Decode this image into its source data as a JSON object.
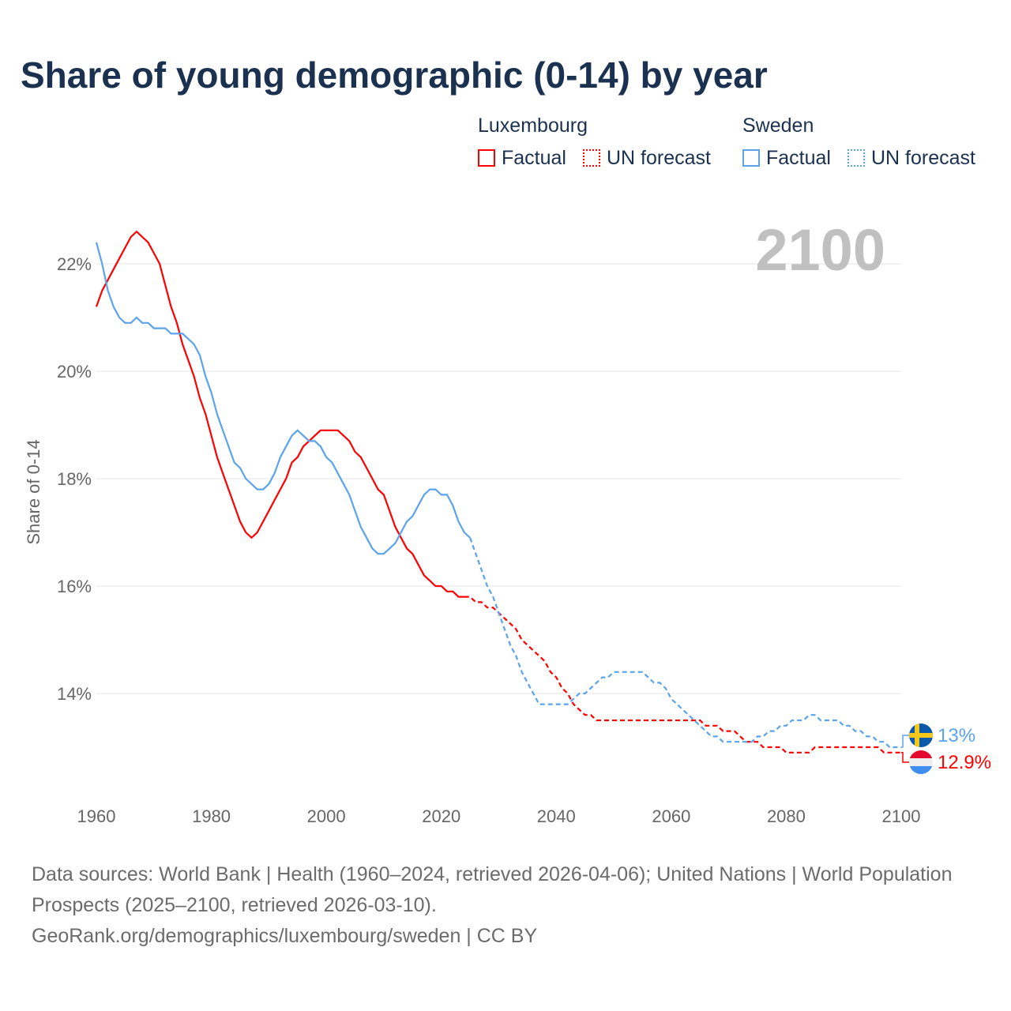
{
  "chart_data": {
    "type": "line",
    "title": "Share of young demographic (0-14) by year",
    "ylabel": "Share of 0-14",
    "xlabel": "",
    "xlim": [
      1960,
      2100
    ],
    "ylim": [
      12.5,
      22.9
    ],
    "x_ticks": [
      "1960",
      "1980",
      "2000",
      "2020",
      "2040",
      "2060",
      "2080",
      "2100"
    ],
    "y_ticks": [
      "14%",
      "16%",
      "18%",
      "20%",
      "22%"
    ],
    "grid": true,
    "year_label": "2100",
    "legend": {
      "groups": [
        {
          "name": "Luxembourg",
          "items": [
            "Factual",
            "UN forecast"
          ]
        },
        {
          "name": "Sweden",
          "items": [
            "Factual",
            "UN forecast"
          ]
        }
      ],
      "placement": "top-right"
    },
    "series": [
      {
        "name": "Luxembourg",
        "color": "#ff0000",
        "end_label": "12.9%",
        "factual_start": 1960,
        "factual": [
          21.2,
          21.5,
          21.7,
          21.9,
          22.1,
          22.3,
          22.5,
          22.6,
          22.5,
          22.4,
          22.2,
          22.0,
          21.6,
          21.2,
          20.9,
          20.5,
          20.2,
          19.9,
          19.5,
          19.2,
          18.8,
          18.4,
          18.1,
          17.8,
          17.5,
          17.2,
          17.0,
          16.9,
          17.0,
          17.2,
          17.4,
          17.6,
          17.8,
          18.0,
          18.3,
          18.4,
          18.6,
          18.7,
          18.8,
          18.9,
          18.9,
          18.9,
          18.9,
          18.8,
          18.7,
          18.5,
          18.4,
          18.2,
          18.0,
          17.8,
          17.7,
          17.4,
          17.1,
          16.9,
          16.7,
          16.6,
          16.4,
          16.2,
          16.1,
          16.0,
          16.0,
          15.9,
          15.9,
          15.8,
          15.8
        ],
        "forecast_start": 2024,
        "forecast": [
          15.8,
          15.8,
          15.7,
          15.7,
          15.6,
          15.6,
          15.5,
          15.4,
          15.3,
          15.2,
          15.0,
          14.9,
          14.8,
          14.7,
          14.6,
          14.4,
          14.3,
          14.1,
          14.0,
          13.8,
          13.7,
          13.6,
          13.6,
          13.5,
          13.5,
          13.5,
          13.5,
          13.5,
          13.5,
          13.5,
          13.5,
          13.5,
          13.5,
          13.5,
          13.5,
          13.5,
          13.5,
          13.5,
          13.5,
          13.5,
          13.5,
          13.5,
          13.4,
          13.4,
          13.4,
          13.3,
          13.3,
          13.3,
          13.2,
          13.1,
          13.1,
          13.1,
          13.0,
          13.0,
          13.0,
          13.0,
          12.9,
          12.9,
          12.9,
          12.9,
          12.9,
          13.0,
          13.0,
          13.0,
          13.0,
          13.0,
          13.0,
          13.0,
          13.0,
          13.0,
          13.0,
          13.0,
          13.0,
          12.9,
          12.9,
          12.9,
          12.9
        ]
      },
      {
        "name": "Sweden",
        "color": "#5ba4ec",
        "end_label": "13%",
        "factual_start": 1960,
        "factual": [
          22.4,
          22.0,
          21.5,
          21.2,
          21.0,
          20.9,
          20.9,
          21.0,
          20.9,
          20.9,
          20.8,
          20.8,
          20.8,
          20.7,
          20.7,
          20.7,
          20.6,
          20.5,
          20.3,
          19.9,
          19.6,
          19.2,
          18.9,
          18.6,
          18.3,
          18.2,
          18.0,
          17.9,
          17.8,
          17.8,
          17.9,
          18.1,
          18.4,
          18.6,
          18.8,
          18.9,
          18.8,
          18.7,
          18.7,
          18.6,
          18.4,
          18.3,
          18.1,
          17.9,
          17.7,
          17.4,
          17.1,
          16.9,
          16.7,
          16.6,
          16.6,
          16.7,
          16.8,
          17.0,
          17.2,
          17.3,
          17.5,
          17.7,
          17.8,
          17.8,
          17.7,
          17.7,
          17.5,
          17.2,
          17.0,
          16.9
        ],
        "forecast_start": 2025,
        "forecast": [
          16.9,
          16.6,
          16.3,
          16.0,
          15.8,
          15.5,
          15.2,
          14.9,
          14.7,
          14.4,
          14.2,
          14.0,
          13.8,
          13.8,
          13.8,
          13.8,
          13.8,
          13.8,
          13.9,
          14.0,
          14.0,
          14.1,
          14.2,
          14.3,
          14.3,
          14.4,
          14.4,
          14.4,
          14.4,
          14.4,
          14.4,
          14.3,
          14.2,
          14.2,
          14.1,
          13.9,
          13.8,
          13.7,
          13.6,
          13.5,
          13.4,
          13.3,
          13.2,
          13.2,
          13.1,
          13.1,
          13.1,
          13.1,
          13.1,
          13.1,
          13.2,
          13.2,
          13.3,
          13.3,
          13.4,
          13.4,
          13.5,
          13.5,
          13.5,
          13.6,
          13.6,
          13.5,
          13.5,
          13.5,
          13.5,
          13.4,
          13.4,
          13.3,
          13.3,
          13.2,
          13.2,
          13.1,
          13.1,
          13.0,
          13.0,
          13.0
        ]
      }
    ]
  },
  "footer": {
    "line1": "Data sources: World Bank | Health (1960–2024, retrieved 2026-04-06); United Nations | World Population Prospects (2025–2100, retrieved 2026-03-10).",
    "line2": "GeoRank.org/demographics/luxembourg/sweden | CC BY"
  }
}
